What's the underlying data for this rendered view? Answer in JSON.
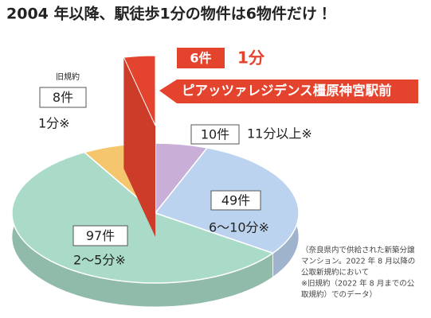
{
  "chart_data": {
    "type": "pie",
    "title": "2004 年以降、駅徒歩1分の物件は6物件だけ！",
    "categories": [
      "1分",
      "11分以上※",
      "6〜10分※",
      "2〜5分※",
      "1分※"
    ],
    "values": [
      6,
      10,
      49,
      97,
      8
    ],
    "value_labels": [
      "6件",
      "10件",
      "49件",
      "97件",
      "8件"
    ],
    "colors": [
      "#e4432d",
      "#c9aed8",
      "#bcd3f0",
      "#a9dbc8",
      "#f6c66e"
    ],
    "old_rule_label": "旧規約",
    "property_name": "ピアッツァレジデンス橿原神宮駅前",
    "note": [
      "（奈良県内で供給された新築分譲",
      "マンション。2022 年 8 月以降の",
      "公取新規約において",
      "※旧規約（2022 年 8 月までの公",
      "取規約）でのデータ）"
    ]
  }
}
